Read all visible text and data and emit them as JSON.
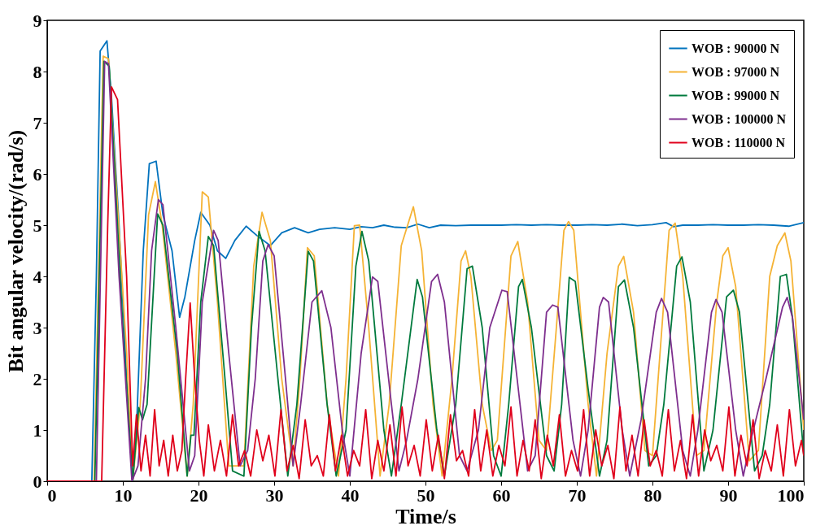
{
  "chart_data": {
    "type": "line",
    "xlabel": "Time/s",
    "ylabel": "Bit angular velocity/(rad/s)",
    "xlim": [
      0,
      100
    ],
    "ylim": [
      0,
      9
    ],
    "xticks": [
      0,
      10,
      20,
      30,
      40,
      50,
      60,
      70,
      80,
      90,
      100
    ],
    "yticks": [
      0,
      1,
      2,
      3,
      4,
      5,
      6,
      7,
      8,
      9
    ],
    "grid": false,
    "legend": "top right",
    "marker": "none",
    "line_style": "solid",
    "series": [
      {
        "name": "WOB : 90000 N",
        "color": "#0072bd",
        "x": [
          0,
          5.9,
          6.5,
          7,
          7.9,
          8.5,
          9.5,
          10.5,
          11.3,
          11.8,
          12.7,
          13.5,
          14.4,
          15.3,
          16.5,
          17.5,
          18.2,
          19.5,
          20.3,
          21.5,
          22.5,
          23.6,
          24.8,
          26.3,
          27.7,
          29.5,
          31,
          32.7,
          34.5,
          36,
          38,
          40,
          41.5,
          43,
          44.5,
          46,
          47.5,
          49,
          50.5,
          52,
          54,
          56,
          58,
          60,
          62,
          64,
          66,
          68,
          70,
          72,
          74,
          76,
          78,
          80,
          81.8,
          82.8,
          84,
          86,
          88,
          90,
          92,
          94,
          96,
          98,
          100
        ],
        "values": [
          0,
          0,
          4,
          8.4,
          8.6,
          7.5,
          5,
          2,
          0,
          1,
          4.5,
          6.2,
          6.25,
          5.2,
          4.5,
          3.2,
          3.6,
          4.7,
          5.25,
          5.0,
          4.5,
          4.35,
          4.7,
          4.98,
          4.8,
          4.6,
          4.85,
          4.95,
          4.85,
          4.92,
          4.95,
          4.92,
          4.97,
          4.95,
          5.0,
          4.96,
          4.95,
          5.02,
          4.95,
          5.0,
          4.99,
          5.0,
          5.0,
          5.0,
          5.01,
          5.0,
          5.01,
          5.0,
          5.0,
          5.01,
          5.0,
          5.02,
          4.99,
          5.01,
          5.05,
          4.97,
          5.0,
          5.0,
          5.01,
          5.0,
          5.0,
          5.01,
          5.0,
          4.98,
          5.05
        ]
      },
      {
        "name": "WOB : 97000 N",
        "color": "#f5b335",
        "x": [
          0,
          6.2,
          7.4,
          8.1,
          10.5,
          11.3,
          12.3,
          13.4,
          14.3,
          15.2,
          17,
          18.5,
          19.3,
          20.5,
          21.3,
          22.5,
          24,
          26,
          27.3,
          28.4,
          29.5,
          31,
          32.5,
          33.4,
          34.4,
          35.3,
          37,
          38.5,
          39.5,
          40.6,
          41.3,
          42.5,
          44,
          45.2,
          46.8,
          48.4,
          49.5,
          51,
          52.2,
          53.5,
          54.7,
          55.3,
          56,
          57.5,
          58.7,
          59.5,
          61.3,
          62.2,
          63.5,
          65,
          66,
          67.3,
          68.3,
          68.9,
          69.6,
          71.5,
          72.6,
          74,
          75.5,
          76.2,
          77.5,
          79,
          80,
          81.5,
          82.2,
          83,
          84,
          85.8,
          86.8,
          88.5,
          89.3,
          90,
          91,
          92.8,
          94,
          95.5,
          96.5,
          97.5,
          98.3,
          100
        ],
        "values": [
          0,
          0,
          8.3,
          8.25,
          2.5,
          0,
          1.5,
          5.2,
          5.85,
          5.0,
          2.5,
          0.1,
          1.5,
          5.65,
          5.55,
          3.5,
          0.3,
          0.3,
          4.2,
          5.25,
          4.7,
          2,
          0.3,
          2,
          4.56,
          4.4,
          1.5,
          0.1,
          2,
          4.99,
          5.0,
          3,
          0.1,
          1.5,
          4.6,
          5.36,
          4.5,
          1.5,
          0.1,
          2,
          4.3,
          4.5,
          4,
          1.5,
          0.6,
          0.8,
          4.4,
          4.68,
          3.5,
          0.8,
          0.6,
          3,
          4.9,
          5.07,
          4.9,
          1.5,
          0.1,
          2.5,
          4.2,
          4.39,
          3.3,
          0.6,
          0.5,
          3.5,
          4.9,
          5.04,
          4,
          0.5,
          0.6,
          3.5,
          4.4,
          4.56,
          3.8,
          0.4,
          0.6,
          4,
          4.6,
          4.85,
          4.3,
          1.0
        ]
      },
      {
        "name": "WOB : 99000 N",
        "color": "#007a3d",
        "x": [
          0,
          6.3,
          7.5,
          8.2,
          10,
          11.3,
          12.1,
          12.6,
          13.2,
          14.6,
          15.3,
          17.2,
          18.5,
          19,
          19.4,
          20.3,
          21.3,
          22,
          23.5,
          24.5,
          26,
          27,
          28,
          28.8,
          30.5,
          31.8,
          33,
          34.5,
          35.2,
          37,
          38.2,
          39.5,
          40.8,
          41.6,
          42.5,
          44.5,
          45.5,
          46.8,
          48.9,
          49.6,
          51.5,
          52.5,
          54,
          55.5,
          56.2,
          57.5,
          59,
          60,
          61,
          62.3,
          62.8,
          64,
          66,
          67,
          68,
          69,
          69.8,
          71.5,
          73,
          74,
          75.5,
          76.3,
          77.5,
          79.5,
          80.5,
          81.5,
          83.2,
          83.9,
          85,
          86.8,
          88,
          89.8,
          90.7,
          91.5,
          93.5,
          94.5,
          95.5,
          96.9,
          97.7,
          98.5,
          100
        ],
        "values": [
          0,
          0,
          8.2,
          8.1,
          3,
          0,
          1.44,
          1.2,
          1.5,
          5.22,
          5.0,
          2.5,
          0.1,
          0.9,
          0.9,
          3.5,
          4.78,
          4.6,
          2.0,
          0.2,
          0.1,
          3,
          4.88,
          4.5,
          2,
          0.1,
          1.5,
          4.49,
          4.3,
          1.5,
          0.1,
          1,
          4.2,
          4.88,
          4.3,
          1,
          0.1,
          1.5,
          3.94,
          3.6,
          1,
          0.1,
          1.5,
          4.15,
          4.2,
          3,
          0.5,
          0.1,
          1.5,
          3.8,
          3.94,
          3,
          0.5,
          0.2,
          1.5,
          3.98,
          3.9,
          1.8,
          0.1,
          0.8,
          3.8,
          3.93,
          3,
          0.3,
          0.5,
          1.5,
          4.2,
          4.38,
          3.5,
          0.2,
          1,
          3.6,
          3.73,
          3.3,
          0.2,
          0.5,
          1.5,
          4.0,
          4.04,
          3.2,
          0.5
        ]
      },
      {
        "name": "WOB : 100000 N",
        "color": "#7e2f8e",
        "x": [
          0,
          6.5,
          7.6,
          8.1,
          9.5,
          11.2,
          12,
          13,
          13.8,
          14.7,
          15.3,
          17,
          18.8,
          19.5,
          20.5,
          22,
          22.6,
          24,
          25.5,
          26.5,
          27.5,
          28.5,
          29.2,
          30,
          31.5,
          32.5,
          33.5,
          35,
          36.3,
          37.5,
          39,
          40,
          41.5,
          43,
          43.7,
          45.5,
          46.5,
          47.5,
          49,
          50.8,
          51.6,
          52.5,
          54.5,
          55.5,
          57,
          58.5,
          60.1,
          60.8,
          62.5,
          63.5,
          64.5,
          66,
          66.8,
          67.5,
          69.5,
          70.5,
          71.5,
          73,
          73.5,
          74.2,
          76,
          77,
          78.5,
          80.5,
          81.2,
          82,
          84,
          85,
          86,
          87.8,
          88.4,
          89.2,
          91,
          92,
          93,
          95,
          97.2,
          97.8,
          98.5,
          100
        ],
        "values": [
          0,
          0,
          8.2,
          8.15,
          4,
          0,
          0.3,
          2,
          4.5,
          5.5,
          5.4,
          3,
          0.2,
          0.5,
          3.5,
          4.9,
          4.7,
          2.5,
          0.3,
          0.6,
          2,
          4.3,
          4.62,
          4.4,
          2,
          0.3,
          1.5,
          3.5,
          3.72,
          3,
          1,
          0.1,
          2.5,
          3.99,
          3.9,
          1.5,
          0.2,
          0.8,
          2,
          3.9,
          4.04,
          3.5,
          0.5,
          0.2,
          1,
          3,
          3.73,
          3.7,
          1.5,
          0.2,
          0.5,
          3.3,
          3.44,
          3.4,
          0.8,
          0.1,
          1,
          3.4,
          3.59,
          3.5,
          1.0,
          0.1,
          1.2,
          3.3,
          3.57,
          3.3,
          0.6,
          0.1,
          1,
          3.3,
          3.55,
          3.3,
          1,
          0.1,
          0.8,
          2,
          3.4,
          3.59,
          3.2,
          1.2
        ]
      },
      {
        "name": "WOB : 110000 N",
        "color": "#e0001b",
        "x": [
          0,
          7.2,
          8.0,
          8.5,
          9.3,
          10.5,
          11.3,
          11.8,
          12.4,
          13.0,
          13.6,
          14.2,
          14.8,
          15.4,
          16.0,
          16.6,
          17.2,
          17.8,
          18.3,
          18.9,
          19.5,
          20.1,
          20.7,
          21.3,
          22.1,
          22.9,
          23.7,
          24.5,
          25.3,
          26.1,
          26.9,
          27.7,
          28.5,
          29.3,
          30.1,
          30.9,
          31.7,
          32.5,
          33.3,
          34.1,
          34.9,
          35.7,
          36.5,
          37.3,
          38.1,
          38.9,
          39.7,
          40.5,
          41.3,
          42.1,
          42.9,
          43.7,
          44.5,
          45.3,
          46.1,
          46.9,
          47.7,
          48.5,
          49.3,
          50.1,
          50.9,
          51.7,
          52.5,
          53.3,
          54.1,
          54.9,
          55.7,
          56.5,
          57.3,
          58.1,
          58.9,
          59.7,
          60.5,
          61.3,
          62.1,
          62.9,
          63.7,
          64.5,
          65.3,
          66.1,
          66.9,
          67.7,
          68.5,
          69.3,
          70.1,
          70.9,
          71.7,
          72.5,
          73.3,
          74.1,
          74.9,
          75.7,
          76.5,
          77.3,
          78.1,
          78.9,
          79.7,
          80.5,
          81.3,
          82.1,
          82.9,
          83.7,
          84.5,
          85.3,
          86.1,
          86.9,
          87.7,
          88.5,
          89.3,
          90.1,
          90.9,
          91.7,
          92.5,
          93.3,
          94.1,
          94.9,
          95.7,
          96.5,
          97.3,
          98.1,
          98.9,
          99.7,
          100
        ],
        "values": [
          0,
          0,
          5.0,
          7.7,
          7.45,
          4.0,
          0.3,
          1.3,
          0.2,
          0.9,
          0.1,
          1.4,
          0.3,
          0.8,
          0.1,
          0.9,
          0.2,
          0.6,
          2.0,
          3.48,
          2.0,
          0.8,
          0.1,
          1.1,
          0.2,
          0.8,
          0.1,
          1.3,
          0.3,
          0.6,
          0.1,
          1.0,
          0.4,
          0.9,
          0.1,
          1.4,
          0.2,
          0.7,
          0.05,
          1.2,
          0.3,
          0.5,
          0.1,
          1.3,
          0.2,
          0.9,
          0.1,
          0.6,
          0.3,
          1.4,
          0.05,
          0.8,
          0.2,
          1.1,
          0.1,
          1.45,
          0.3,
          0.7,
          0.1,
          1.2,
          0.2,
          0.9,
          0.05,
          1.3,
          0.4,
          0.6,
          0.1,
          1.4,
          0.2,
          1.0,
          0.1,
          0.7,
          0.3,
          1.45,
          0.1,
          0.8,
          0.2,
          1.2,
          0.05,
          0.9,
          0.3,
          1.3,
          0.1,
          0.6,
          0.2,
          1.4,
          0.1,
          1.0,
          0.3,
          0.7,
          0.05,
          1.45,
          0.2,
          0.9,
          0.1,
          1.2,
          0.3,
          0.6,
          0.1,
          1.4,
          0.2,
          0.8,
          0.05,
          1.3,
          0.1,
          1.0,
          0.4,
          0.7,
          0.2,
          1.45,
          0.1,
          0.9,
          0.3,
          1.2,
          0.05,
          0.6,
          0.2,
          1.1,
          0.1,
          1.4,
          0.3,
          0.8,
          0.5
        ]
      }
    ]
  }
}
